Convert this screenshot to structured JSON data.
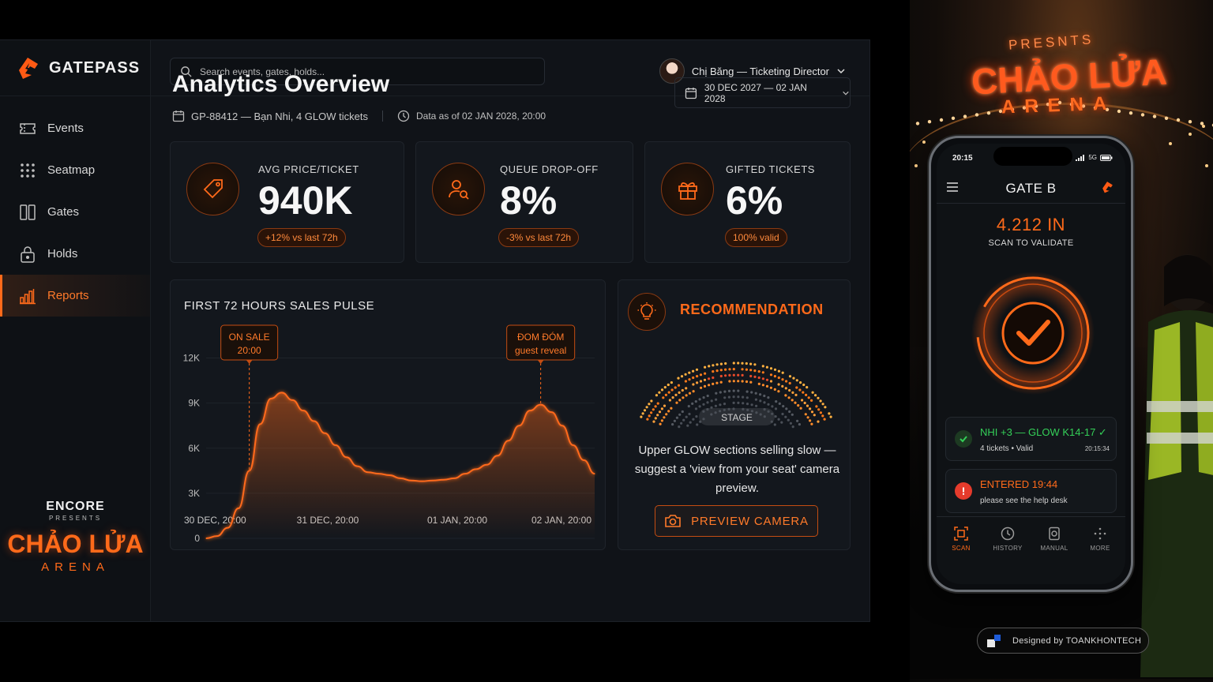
{
  "app": {
    "brand": "GATEPASS"
  },
  "sidebar": {
    "items": [
      {
        "label": "Events",
        "icon": "ticket-icon"
      },
      {
        "label": "Seatmap",
        "icon": "grid-dots-icon"
      },
      {
        "label": "Gates",
        "icon": "gate-icon"
      },
      {
        "label": "Holds",
        "icon": "lock-icon"
      },
      {
        "label": "Reports",
        "icon": "bar-chart-icon",
        "active": true
      }
    ],
    "event_logo": {
      "top": "ENCORE",
      "sub": "PRESENTS",
      "name": "CHẢO LỬA",
      "venue": "ARENA"
    }
  },
  "topbar": {
    "search_placeholder": "Search events, gates, holds...",
    "user_label": "Chị Băng — Ticketing Director"
  },
  "page": {
    "title": "Analytics Overview",
    "order_line": "GP-88412 — Bạn Nhi, 4 GLOW tickets",
    "data_as_of": "Data as of 02 JAN 2028, 20:00",
    "date_range": "30 DEC 2027 — 02 JAN 2028"
  },
  "kpis": [
    {
      "label": "AVG PRICE/TICKET",
      "value": "940K",
      "delta": "+12% vs last 72h",
      "icon": "price-tag-icon"
    },
    {
      "label": "QUEUE DROP-OFF",
      "value": "8%",
      "delta": "-3% vs last 72h",
      "icon": "user-search-icon"
    },
    {
      "label": "GIFTED TICKETS",
      "value": "6%",
      "delta": "100% valid",
      "icon": "gift-icon"
    }
  ],
  "chart_data": {
    "type": "line",
    "title": "FIRST 72 HOURS SALES PULSE",
    "x_hours": [
      0,
      2,
      4,
      6,
      8,
      10,
      12,
      14,
      16,
      18,
      20,
      22,
      24,
      26,
      28,
      30,
      32,
      34,
      36,
      38,
      40,
      42,
      44,
      46,
      48,
      50,
      52,
      54,
      56,
      58,
      60,
      62,
      64,
      66,
      68,
      70,
      72
    ],
    "values": [
      0,
      150,
      700,
      2000,
      4500,
      7600,
      9300,
      9700,
      9200,
      8500,
      7800,
      7000,
      6200,
      5400,
      4800,
      4400,
      4300,
      4200,
      4000,
      3850,
      3800,
      3850,
      3900,
      4000,
      4300,
      4600,
      4900,
      5500,
      6500,
      7500,
      8500,
      8900,
      8400,
      7500,
      6200,
      5200,
      4300
    ],
    "x_tick_labels": [
      "30 DEC, 20:00",
      "31 DEC, 20:00",
      "01 JAN, 20:00",
      "02 JAN, 20:00"
    ],
    "x_tick_hours": [
      0,
      24,
      48,
      72
    ],
    "y_ticks": [
      0,
      3000,
      6000,
      9000,
      12000
    ],
    "y_tick_labels": [
      "0",
      "3K",
      "6K",
      "9K",
      "12K"
    ],
    "ylim": [
      0,
      13500
    ],
    "annotations": [
      {
        "line1": "ON SALE",
        "line2": "20:00",
        "x_hour": 8
      },
      {
        "line1": "ĐOM ĐÓM",
        "line2": "guest reveal",
        "x_hour": 62
      }
    ],
    "color": "#ff6a1a"
  },
  "recommendation": {
    "title": "RECOMMENDATION",
    "stage_label": "STAGE",
    "text": "Upper GLOW sections selling slow — suggest a 'view from your seat' camera preview.",
    "button": "PREVIEW CAMERA"
  },
  "phone": {
    "time": "20:15",
    "network": "5G",
    "title": "GATE B",
    "count": "4.212 IN",
    "scan_prompt": "SCAN TO VALIDATE",
    "entries": [
      {
        "title": "NHI +3 — GLOW K14-17 ✓",
        "sub": "4 tickets • Valid",
        "time": "20:15:34",
        "status": "ok"
      },
      {
        "title": "ENTERED 19:44",
        "sub": "please see the help desk",
        "time": "",
        "status": "warn"
      }
    ],
    "tabs": [
      "SCAN",
      "HISTORY",
      "MANUAL",
      "MORE"
    ]
  },
  "scene": {
    "sign_presents": "PRESNTS",
    "sign_name": "CHẢO LỬA",
    "sign_venue": "ARENA"
  },
  "credit": "Designed by TOANKHONTECH",
  "colors": {
    "accent": "#ff6a1a",
    "success": "#22c55e",
    "warn": "#ef4444",
    "bg": "#101318"
  }
}
